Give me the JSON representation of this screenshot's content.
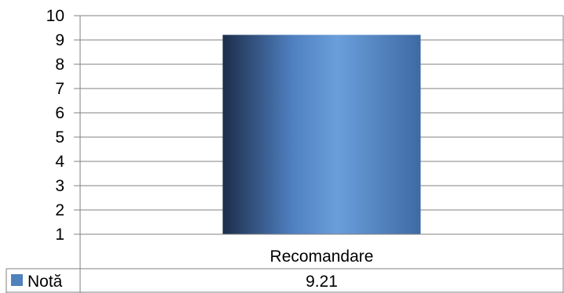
{
  "chart_data": {
    "type": "bar",
    "categories": [
      "Recomandare"
    ],
    "series": [
      {
        "name": "Notă",
        "values": [
          9.21
        ]
      }
    ],
    "ylim": [
      1,
      10
    ],
    "yticks": [
      1,
      2,
      3,
      4,
      5,
      6,
      7,
      8,
      9,
      10
    ],
    "grid": true,
    "data_table": true,
    "legend_position": "data-table-row",
    "colors": {
      "bar_dark": "#1c2e4a",
      "bar_light": "#6a9edb",
      "legend_key": "#4f81bd",
      "grid": "#808080"
    }
  }
}
